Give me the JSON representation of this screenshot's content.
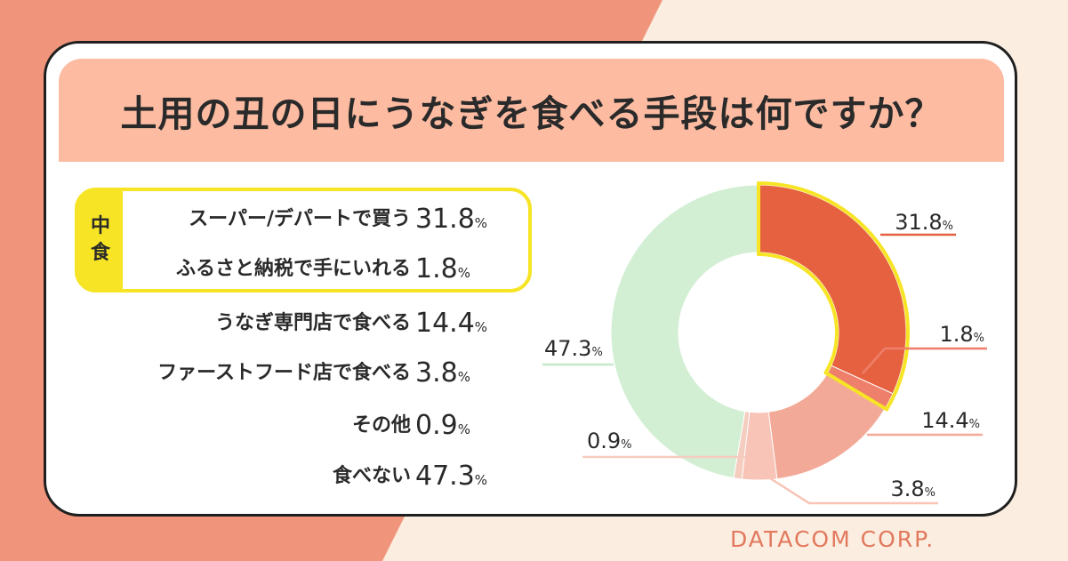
{
  "title": "土用の丑の日にうなぎを食べる手段は何ですか？",
  "group_tag": [
    "中",
    "食"
  ],
  "logo": "DATACOM CORP.",
  "percent_sign": "%",
  "colors": {
    "slice_1": "#e5613f",
    "slice_2": "#ee7f6b",
    "slice_3": "#f3a997",
    "slice_4": "#f7c4b7",
    "slice_5": "#f4cdbf",
    "slice_6": "#d2efd3",
    "highlight": "#f6e425",
    "background_left": "#f0957b",
    "title_band": "#fdbca2"
  },
  "chart_data": {
    "type": "pie",
    "title": "土用の丑の日にうなぎを食べる手段は何ですか？",
    "unit": "%",
    "categories": [
      "スーパー/デパートで買う",
      "ふるさと納税で手にいれる",
      "うなぎ専門店で食べる",
      "ファーストフード店で食べる",
      "その他",
      "食べない"
    ],
    "values": [
      31.8,
      1.8,
      14.4,
      3.8,
      0.9,
      47.3
    ],
    "labels": [
      "31.8",
      "1.8",
      "14.4",
      "3.8",
      "0.9",
      "47.3"
    ],
    "highlighted_group": "中食",
    "highlighted_indices": [
      0,
      1
    ]
  }
}
